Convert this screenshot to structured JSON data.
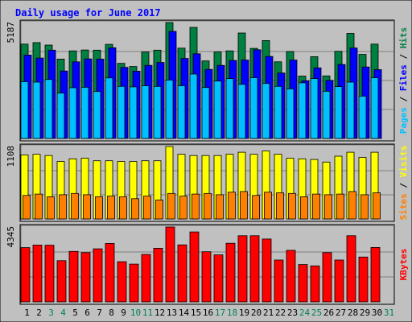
{
  "chart_data": [
    {
      "type": "bar",
      "panel": "pages-files-hits",
      "title": "Daily usage for June 2017",
      "x": [
        "1",
        "2",
        "3",
        "4",
        "5",
        "6",
        "7",
        "8",
        "9",
        "10",
        "11",
        "12",
        "13",
        "14",
        "15",
        "16",
        "17",
        "18",
        "19",
        "20",
        "21",
        "22",
        "23",
        "24",
        "25",
        "26",
        "27",
        "28",
        "29",
        "30",
        "31"
      ],
      "weekend_days": [
        "3",
        "4",
        "10",
        "11",
        "17",
        "18",
        "24",
        "25",
        "31"
      ],
      "ymax_label": "5187",
      "ylim": [
        0,
        5187
      ],
      "grid": true,
      "series": [
        {
          "name": "Hits",
          "color": "#008040",
          "values": [
            4220,
            4290,
            4180,
            3550,
            3920,
            3960,
            3950,
            4210,
            3360,
            3220,
            3870,
            3950,
            5187,
            4040,
            4970,
            3470,
            3870,
            3920,
            4720,
            4030,
            4380,
            3430,
            3890,
            2790,
            3660,
            2800,
            3900,
            4700,
            3760,
            4220,
            null
          ]
        },
        {
          "name": "Files",
          "color": "#0000ff",
          "values": [
            3730,
            3600,
            3950,
            3020,
            3430,
            3560,
            3550,
            4060,
            3180,
            3010,
            3270,
            3400,
            4790,
            3580,
            3790,
            3090,
            3270,
            3490,
            3510,
            3970,
            3670,
            2930,
            3510,
            2580,
            3160,
            2600,
            3310,
            4050,
            3200,
            3080,
            null
          ]
        },
        {
          "name": "Pages",
          "color": "#00c0ff",
          "values": [
            2540,
            2520,
            2640,
            2030,
            2270,
            2290,
            2100,
            2710,
            2330,
            2310,
            2360,
            2330,
            2610,
            2360,
            2880,
            2280,
            2570,
            2680,
            2420,
            2720,
            2460,
            2330,
            2220,
            2490,
            2680,
            2110,
            2320,
            2520,
            1890,
            2720,
            null
          ]
        }
      ]
    },
    {
      "type": "bar",
      "panel": "visits-sites",
      "x": [
        "1",
        "2",
        "3",
        "4",
        "5",
        "6",
        "7",
        "8",
        "9",
        "10",
        "11",
        "12",
        "13",
        "14",
        "15",
        "16",
        "17",
        "18",
        "19",
        "20",
        "21",
        "22",
        "23",
        "24",
        "25",
        "26",
        "27",
        "28",
        "29",
        "30",
        "31"
      ],
      "ymax_label": "1108",
      "ylim": [
        0,
        1108
      ],
      "grid": true,
      "series": [
        {
          "name": "Visits",
          "color": "#ffff00",
          "values": [
            980,
            990,
            970,
            880,
            920,
            930,
            890,
            890,
            880,
            880,
            890,
            890,
            1108,
            990,
            970,
            970,
            970,
            990,
            1020,
            990,
            1040,
            990,
            930,
            920,
            910,
            870,
            960,
            1020,
            940,
            1020,
            null
          ]
        },
        {
          "name": "Sites",
          "color": "#ff8000",
          "values": [
            360,
            380,
            340,
            370,
            390,
            370,
            340,
            350,
            340,
            310,
            350,
            290,
            390,
            350,
            380,
            390,
            370,
            410,
            420,
            360,
            410,
            400,
            390,
            340,
            380,
            370,
            380,
            420,
            370,
            400,
            null
          ]
        }
      ]
    },
    {
      "type": "bar",
      "panel": "kbytes",
      "x": [
        "1",
        "2",
        "3",
        "4",
        "5",
        "6",
        "7",
        "8",
        "9",
        "10",
        "11",
        "12",
        "13",
        "14",
        "15",
        "16",
        "17",
        "18",
        "19",
        "20",
        "21",
        "22",
        "23",
        "24",
        "25",
        "26",
        "27",
        "28",
        "29",
        "30",
        "31"
      ],
      "ymax_label": "4345",
      "ylim": [
        0,
        4345
      ],
      "grid": true,
      "series": [
        {
          "name": "KBytes",
          "color": "#ff0000",
          "values": [
            3150,
            3300,
            3290,
            2390,
            2930,
            2860,
            3080,
            3390,
            2330,
            2190,
            2750,
            3110,
            4345,
            3310,
            4060,
            2910,
            2730,
            3400,
            3840,
            3840,
            3650,
            2430,
            2990,
            2170,
            2090,
            2860,
            2430,
            3840,
            2600,
            3160,
            null
          ]
        }
      ]
    }
  ],
  "legend_sep": " / ",
  "colors": {
    "frame_bg": "#c0c0c0",
    "title": "#0000ff",
    "weekday_label": "#000000",
    "weekend_label": "#00805a",
    "grid": "#808080"
  }
}
